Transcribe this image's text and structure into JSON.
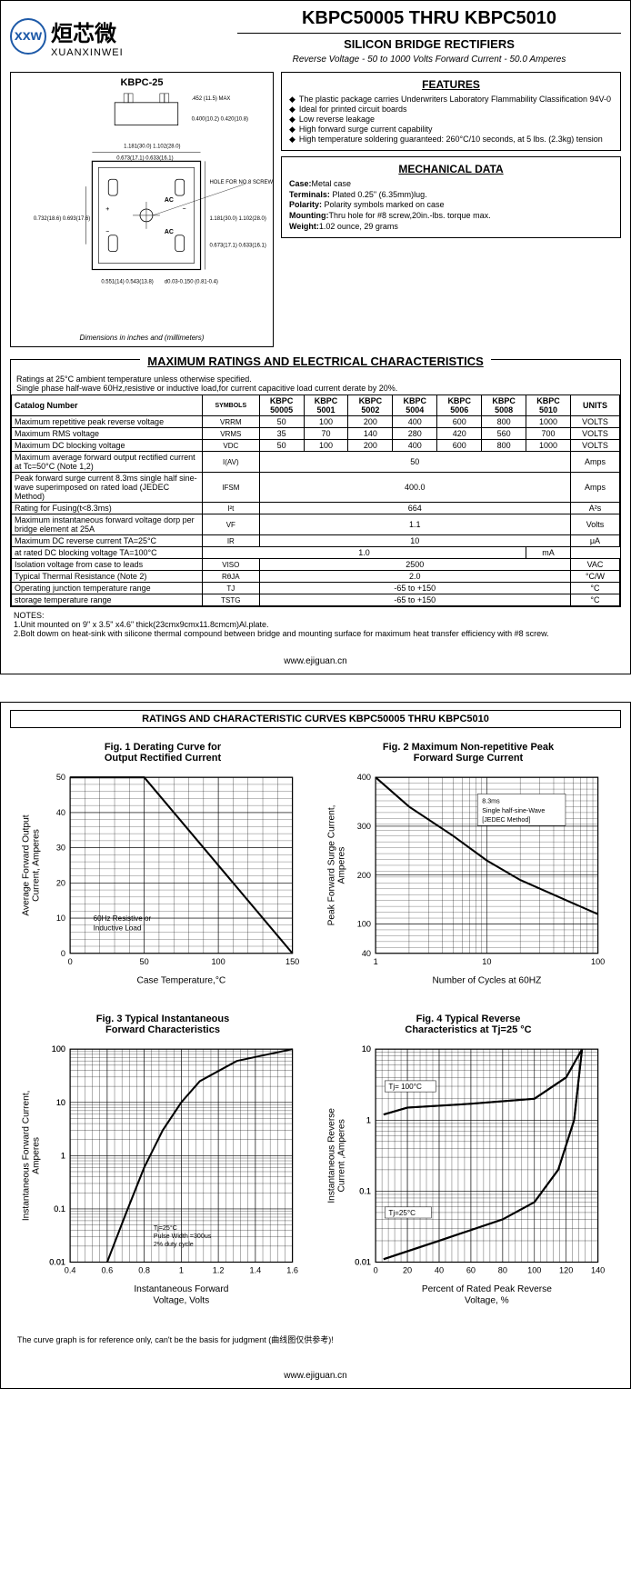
{
  "logo": {
    "cn": "烜芯微",
    "en": "XUANXINWEI",
    "mark": "xxw"
  },
  "header": {
    "title": "KBPC50005 THRU KBPC5010",
    "subtitle": "SILICON BRIDGE RECTIFIERS",
    "specs": "Reverse Voltage - 50 to 1000 Volts    Forward Current - 50.0 Amperes"
  },
  "package": {
    "title": "KBPC-25",
    "dim_note": "Dimensions in inches and (millimeters)",
    "dims": {
      "top_h": ".452 (11.5) MAX",
      "top_w": "0.400(10.2) 0.420(10.8)",
      "body": "1.181(30.0) 1.102(28.0)",
      "hole_note": "HOLE FOR NO.8 SCREW",
      "lead_top": "0.673(17.1) 0.633(16.1)",
      "body2": "1.181(30.0) 1.102(28.0)",
      "lead_v": "0.732(18.6) 0.693(17.6)",
      "lead_h": "0.673(17.1) 0.633(16.1)",
      "pad": "0.551(14) 0.543(13.8)",
      "slot": "d0.03-0.150 (0.81-0.4)"
    }
  },
  "features": {
    "title": "FEATURES",
    "items": [
      "The plastic package carries Underwriters Laboratory Flammability Classification 94V-0",
      "Ideal for printed circuit boards",
      "Low reverse leakage",
      "High forward surge current capability",
      "High temperature soldering guaranteed: 260°C/10 seconds, at 5 lbs. (2.3kg) tension"
    ]
  },
  "mechanical": {
    "title": "MECHANICAL DATA",
    "case_l": "Case:",
    "case": "Metal case",
    "term_l": "Terminals:",
    "term": " Plated 0.25\"   (6.35mm)lug.",
    "pol_l": "Polarity:",
    "pol": " Polarity symbols marked on case",
    "mount_l": "Mounting:",
    "mount": "Thru hole for #8 screw,20in.-lbs. torque max.",
    "weight_l": "Weight:",
    "weight": "1.02 ounce, 29 grams"
  },
  "ratings": {
    "title": "MAXIMUM RATINGS AND ELECTRICAL CHARACTERISTICS",
    "note": "Ratings at 25°C ambient temperature unless otherwise specified.\nSingle phase half-wave 60Hz,resistive or inductive load,for current capacitive load current derate by 20%.",
    "headers": [
      "Catalog         Number",
      "SYMBOLS",
      "KBPC 50005",
      "KBPC 5001",
      "KBPC 5002",
      "KBPC 5004",
      "KBPC 5006",
      "KBPC 5008",
      "KBPC 5010",
      "UNITS"
    ],
    "rows": [
      {
        "label": "Maximum repetitive peak reverse voltage",
        "sym": "VRRM",
        "vals": [
          "50",
          "100",
          "200",
          "400",
          "600",
          "800",
          "1000"
        ],
        "unit": "VOLTS"
      },
      {
        "label": "Maximum RMS voltage",
        "sym": "VRMS",
        "vals": [
          "35",
          "70",
          "140",
          "280",
          "420",
          "560",
          "700"
        ],
        "unit": "VOLTS"
      },
      {
        "label": "Maximum DC blocking voltage",
        "sym": "VDC",
        "vals": [
          "50",
          "100",
          "200",
          "400",
          "600",
          "800",
          "1000"
        ],
        "unit": "VOLTS"
      },
      {
        "label": "Maximum average forward output rectified current at  Tc=50°C  (Note 1,2)",
        "sym": "I(AV)",
        "span": "50",
        "unit": "Amps"
      },
      {
        "label": "Peak forward surge current 8.3ms single half sine-wave superimposed on rated load (JEDEC Method)",
        "sym": "IFSM",
        "span": "400.0",
        "unit": "Amps"
      },
      {
        "label": "Rating for Fusing(t<8.3ms)",
        "sym": "I²t",
        "span": "664",
        "unit": "A²s"
      },
      {
        "label": "Maximum instantaneous forward voltage dorp per bridge element at 25A",
        "sym": "VF",
        "span": "1.1",
        "unit": "Volts"
      },
      {
        "label": "Maximum DC reverse current     TA=25°C",
        "sym": "IR",
        "span": "10",
        "unit": "μA",
        "rowspan_sym": true
      },
      {
        "label": "at rated DC blocking voltage       TA=100°C",
        "span": "1.0",
        "unit": "mA",
        "no_sym": true
      },
      {
        "label": "Isolation voltage from case to leads",
        "sym": "VISO",
        "span": "2500",
        "unit": "VAC"
      },
      {
        "label": "Typical Thermal Resistance (Note 2)",
        "sym": "RθJA",
        "span": "2.0",
        "unit": "°C/W"
      },
      {
        "label": "Operating junction temperature range",
        "sym": "TJ",
        "span": "-65 to +150",
        "unit": "°C"
      },
      {
        "label": "storage temperature range",
        "sym": "TSTG",
        "span": "-65 to +150",
        "unit": "°C"
      }
    ]
  },
  "notes": {
    "title": "NOTES:",
    "lines": [
      "1.Unit mounted on 9\"  x 3.5\"  x4.6\"  thick(23cmx9cmx11.8cmcm)Al.plate.",
      "2.Bolt dowm on heat-sink with silicone thermal compound between bridge and mounting surface for maximum heat transfer efficiency with #8 screw."
    ]
  },
  "footer": "www.ejiguan.cn",
  "page2": {
    "title": "RATINGS AND CHARACTERISTIC CURVES KBPC50005 THRU KBPC5010",
    "fig1": {
      "title": "Fig. 1  Derating Curve for\nOutput Rectified Current",
      "ylabel": "Average Forward Output\nCurrent, Amperes",
      "xlabel": "Case Temperature,°C",
      "note": "60Hz Resistive or\nInductive Load",
      "xlim": [
        0,
        150
      ],
      "ylim": [
        0,
        50
      ],
      "xticks": [
        0,
        50,
        100,
        150
      ],
      "yticks": [
        0,
        10,
        20,
        30,
        40,
        50
      ],
      "line": [
        [
          0,
          50
        ],
        [
          50,
          50
        ],
        [
          150,
          0
        ]
      ],
      "grid_color": "#000",
      "line_color": "#000",
      "bg": "#fff"
    },
    "fig2": {
      "title": "Fig. 2 Maximum Non-repetitive Peak\nForward Surge Current",
      "ylabel": "Peak Forward Surge Current,\nAmperes",
      "xlabel": "Number of Cycles at 60HZ",
      "note": "8.3ms\nSingle half-sine-Wave\n[JEDEC Method]",
      "xlim": [
        1,
        100
      ],
      "xscale": "log",
      "ylim": [
        40,
        400
      ],
      "yticks": [
        40,
        100,
        200,
        300,
        400
      ],
      "xticks": [
        1,
        10,
        100
      ],
      "line": [
        [
          1,
          400
        ],
        [
          2,
          340
        ],
        [
          5,
          280
        ],
        [
          10,
          230
        ],
        [
          20,
          190
        ],
        [
          50,
          150
        ],
        [
          100,
          120
        ]
      ],
      "grid_color": "#000",
      "line_color": "#000",
      "bg": "#fff"
    },
    "fig3": {
      "title": "Fig. 3 Typical Instantaneous\nForward Characteristics",
      "ylabel": "Instantaneous Forward Current,\nAmperes",
      "xlabel": "Instantaneous Forward\nVoltage, Volts",
      "note": "Tj=25°C\nPulse Width =300us\n2% duty cycle",
      "xlim": [
        0.4,
        1.6
      ],
      "ylim": [
        0.01,
        100
      ],
      "yscale": "log",
      "xticks": [
        0.4,
        0.6,
        0.8,
        1.0,
        1.2,
        1.4,
        1.6
      ],
      "line": [
        [
          0.6,
          0.01
        ],
        [
          0.7,
          0.08
        ],
        [
          0.8,
          0.6
        ],
        [
          0.9,
          3
        ],
        [
          1.0,
          10
        ],
        [
          1.1,
          25
        ],
        [
          1.3,
          60
        ],
        [
          1.6,
          100
        ]
      ],
      "grid_color": "#000",
      "line_color": "#000",
      "bg": "#fff"
    },
    "fig4": {
      "title": "Fig. 4 Typical Reverse\nCharacteristics at  Tj=25 °C",
      "ylabel": "Instantaneous Reverse\nCurrent ,Amperes",
      "xlabel": "Percent of Rated Peak Reverse\nVoltage, %",
      "notes": [
        "Tj= 100°C",
        "Tj=25°C"
      ],
      "xlim": [
        0,
        140
      ],
      "ylim": [
        0.01,
        10
      ],
      "yscale": "log",
      "xticks": [
        0,
        20,
        40,
        60,
        80,
        100,
        120,
        140
      ],
      "line1": [
        [
          5,
          1.2
        ],
        [
          20,
          1.5
        ],
        [
          60,
          1.7
        ],
        [
          100,
          2
        ],
        [
          120,
          4
        ],
        [
          130,
          10
        ]
      ],
      "line2": [
        [
          5,
          0.011
        ],
        [
          40,
          0.02
        ],
        [
          80,
          0.04
        ],
        [
          100,
          0.07
        ],
        [
          115,
          0.2
        ],
        [
          125,
          1
        ],
        [
          130,
          10
        ]
      ],
      "grid_color": "#000",
      "line_color": "#000",
      "bg": "#fff"
    },
    "ref_note": "The curve graph is for reference only, can't be the basis for judgment (曲线图仅供参考)!"
  }
}
